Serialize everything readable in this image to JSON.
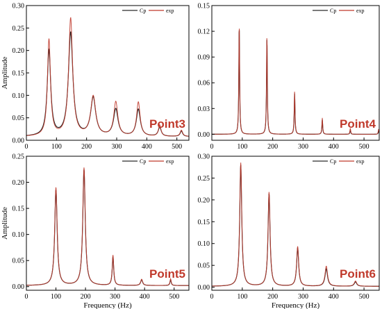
{
  "figure": {
    "colors": {
      "cp": "#2a2a2a",
      "exp": "#c0392b",
      "label": "#c0392b",
      "axis": "#000000"
    }
  },
  "chart_data": [
    {
      "type": "line",
      "panel_label": "Point3",
      "xlabel": "",
      "ylabel": "Amplitude",
      "xlim": [
        0,
        540
      ],
      "ylim": [
        0,
        0.3
      ],
      "xticks": [
        "0",
        "100",
        "200",
        "300",
        "400",
        "500"
      ],
      "yticks": [
        "0.00",
        "0.05",
        "0.10",
        "0.15",
        "0.20",
        "0.25",
        "0.30"
      ],
      "legend": "top-right",
      "baseline": 0.008,
      "series": [
        {
          "name": "Cp",
          "peaks": [
            [
              75,
              0.19,
              7
            ],
            [
              147,
              0.23,
              9
            ],
            [
              222,
              0.085,
              10
            ],
            [
              297,
              0.06,
              9
            ],
            [
              372,
              0.06,
              8
            ],
            [
              443,
              0.02,
              6
            ],
            [
              515,
              0.012,
              5
            ]
          ]
        },
        {
          "name": "exp",
          "peaks": [
            [
              75,
              0.215,
              6
            ],
            [
              147,
              0.262,
              8
            ],
            [
              222,
              0.088,
              10
            ],
            [
              297,
              0.076,
              8
            ],
            [
              372,
              0.076,
              7
            ],
            [
              443,
              0.025,
              5
            ],
            [
              515,
              0.014,
              5
            ]
          ]
        }
      ]
    },
    {
      "type": "line",
      "panel_label": "Point4",
      "xlabel": "",
      "ylabel": "",
      "xlim": [
        0,
        550
      ],
      "ylim": [
        -0.007,
        0.15
      ],
      "xticks": [
        "0",
        "100",
        "200",
        "300",
        "400",
        "500"
      ],
      "yticks": [
        "0.00",
        "0.03",
        "0.06",
        "0.09",
        "0.12",
        "0.15"
      ],
      "legend": "top-right",
      "baseline": 0.0,
      "series": [
        {
          "name": "Cp",
          "peaks": [
            [
              90,
              0.128,
              1.5
            ],
            [
              181,
              0.114,
              1.5
            ],
            [
              272,
              0.048,
              1.5
            ],
            [
              363,
              0.017,
              1.5
            ],
            [
              455,
              0.005,
              1.5
            ],
            [
              548,
              0.004,
              1.5
            ]
          ]
        },
        {
          "name": "exp",
          "peaks": [
            [
              90,
              0.13,
              1.5
            ],
            [
              181,
              0.116,
              1.5
            ],
            [
              272,
              0.05,
              1.5
            ],
            [
              363,
              0.019,
              1.5
            ],
            [
              455,
              0.007,
              1.5
            ],
            [
              548,
              0.006,
              1.5
            ]
          ]
        }
      ]
    },
    {
      "type": "line",
      "panel_label": "Point5",
      "xlabel": "Frequency (Hz)",
      "ylabel": "Amplitude",
      "xlim": [
        0,
        550
      ],
      "ylim": [
        -0.007,
        0.25
      ],
      "xticks": [
        "0",
        "100",
        "200",
        "300",
        "400",
        "500"
      ],
      "yticks": [
        "0.00",
        "0.05",
        "0.10",
        "0.15",
        "0.20",
        "0.25"
      ],
      "legend": "top-right",
      "baseline": 0.002,
      "series": [
        {
          "name": "Cp",
          "peaks": [
            [
              100,
              0.183,
              5
            ],
            [
              195,
              0.222,
              5
            ],
            [
              293,
              0.055,
              3
            ],
            [
              390,
              0.011,
              4
            ],
            [
              488,
              0.011,
              2.5
            ]
          ]
        },
        {
          "name": "exp",
          "peaks": [
            [
              100,
              0.188,
              5
            ],
            [
              195,
              0.226,
              5
            ],
            [
              293,
              0.058,
              3
            ],
            [
              390,
              0.012,
              4
            ],
            [
              488,
              0.013,
              2.5
            ]
          ]
        }
      ]
    },
    {
      "type": "line",
      "panel_label": "Point6",
      "xlabel": "Frequency (Hz)",
      "ylabel": "",
      "xlim": [
        0,
        550
      ],
      "ylim": [
        -0.007,
        0.3
      ],
      "xticks": [
        "0",
        "100",
        "200",
        "300",
        "400",
        "500"
      ],
      "yticks": [
        "0.00",
        "0.05",
        "0.10",
        "0.15",
        "0.20",
        "0.25",
        "0.30"
      ],
      "legend": "top-right",
      "baseline": 0.002,
      "series": [
        {
          "name": "Cp",
          "peaks": [
            [
              95,
              0.278,
              4
            ],
            [
              188,
              0.212,
              4
            ],
            [
              282,
              0.088,
              4
            ],
            [
              376,
              0.04,
              5
            ],
            [
              472,
              0.01,
              5
            ]
          ]
        },
        {
          "name": "exp",
          "peaks": [
            [
              95,
              0.283,
              4
            ],
            [
              188,
              0.216,
              4
            ],
            [
              282,
              0.091,
              4
            ],
            [
              376,
              0.046,
              5
            ],
            [
              472,
              0.012,
              5
            ]
          ]
        }
      ]
    }
  ]
}
